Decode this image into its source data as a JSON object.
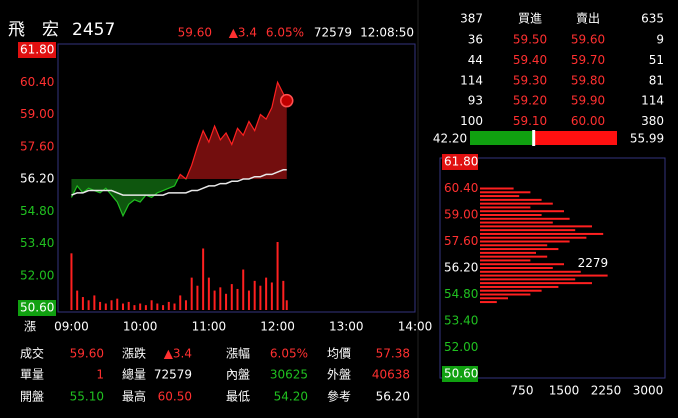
{
  "header": {
    "name": "飛　宏",
    "code": "2457",
    "price": "59.60",
    "change": "▲3.4",
    "change_pct": "6.05%",
    "volume": "72579",
    "time": "12:08:50"
  },
  "axis_note": "漲",
  "order_book": {
    "bid_total": "387",
    "bid_title": "買進",
    "ask_title": "賣出",
    "ask_total": "635",
    "rows": [
      [
        "36",
        "59.50",
        "59.60",
        "9"
      ],
      [
        "44",
        "59.40",
        "59.70",
        "51"
      ],
      [
        "114",
        "59.30",
        "59.80",
        "81"
      ],
      [
        "93",
        "59.20",
        "59.90",
        "114"
      ],
      [
        "100",
        "59.10",
        "60.00",
        "380"
      ]
    ],
    "ratio": {
      "bid": {
        "value": 42.2,
        "label": "42.20"
      },
      "ask": 55.99,
      "bid_color": "#10a010",
      "ask_color": "#ff1010"
    }
  },
  "stats": {
    "rows": [
      [
        {
          "label": "成交",
          "value": "59.60",
          "tone": "up"
        },
        {
          "label": "漲跌",
          "value": "▲3.4",
          "tone": "up"
        },
        {
          "label": "漲幅",
          "value": "6.05%",
          "tone": "up"
        },
        {
          "label": "均價",
          "value": "57.38",
          "tone": "up"
        }
      ],
      [
        {
          "label": "單量",
          "value": "1",
          "tone": "up"
        },
        {
          "label": "總量",
          "value": "72579",
          "tone": "flat"
        },
        {
          "label": "內盤",
          "value": "30625",
          "tone": "down"
        },
        {
          "label": "外盤",
          "value": "40638",
          "tone": "up"
        }
      ],
      [
        {
          "label": "開盤",
          "value": "55.10",
          "tone": "down"
        },
        {
          "label": "最高",
          "value": "60.50",
          "tone": "up"
        },
        {
          "label": "最低",
          "value": "54.20",
          "tone": "down"
        },
        {
          "label": "參考",
          "value": "56.20",
          "tone": "flat"
        }
      ]
    ]
  },
  "chart_data": [
    {
      "type": "line",
      "x": [
        "09:00",
        "09:05",
        "09:10",
        "09:15",
        "09:20",
        "09:25",
        "09:30",
        "09:35",
        "09:40",
        "09:45",
        "09:50",
        "09:55",
        "10:00",
        "10:05",
        "10:10",
        "10:15",
        "10:20",
        "10:25",
        "10:30",
        "10:35",
        "10:40",
        "10:45",
        "10:50",
        "10:55",
        "11:00",
        "11:05",
        "11:10",
        "11:15",
        "11:20",
        "11:25",
        "11:30",
        "11:35",
        "11:40",
        "11:45",
        "11:50",
        "11:55",
        "12:00",
        "12:05",
        "12:08"
      ],
      "series": [
        {
          "values": [
            55.4,
            55.9,
            55.6,
            55.8,
            55.7,
            55.6,
            55.8,
            55.5,
            55.2,
            54.6,
            55.1,
            55.3,
            55.2,
            55.5,
            55.4,
            55.6,
            55.7,
            55.8,
            55.9,
            56.4,
            56.2,
            56.8,
            57.6,
            58.3,
            57.8,
            58.5,
            57.9,
            58.2,
            57.7,
            58.4,
            58.1,
            58.7,
            58.3,
            59.0,
            58.8,
            59.3,
            60.4,
            59.9,
            59.6
          ]
        },
        {
          "values": [
            55.5,
            55.6,
            55.6,
            55.7,
            55.7,
            55.7,
            55.7,
            55.7,
            55.6,
            55.5,
            55.5,
            55.5,
            55.5,
            55.5,
            55.5,
            55.5,
            55.5,
            55.6,
            55.6,
            55.6,
            55.6,
            55.7,
            55.7,
            55.8,
            55.9,
            55.9,
            56.0,
            56.0,
            56.1,
            56.1,
            56.2,
            56.2,
            56.3,
            56.3,
            56.4,
            56.4,
            56.5,
            56.6,
            56.6
          ],
          "color": "#e8e8e8"
        }
      ],
      "up_color": "#ff2020",
      "down_color": "#20c020",
      "reference": 56.2,
      "volume": {
        "values": [
          350,
          120,
          80,
          60,
          90,
          50,
          40,
          60,
          70,
          40,
          50,
          30,
          40,
          30,
          60,
          40,
          30,
          50,
          40,
          90,
          60,
          200,
          150,
          380,
          200,
          120,
          140,
          100,
          160,
          130,
          250,
          120,
          180,
          150,
          200,
          170,
          420,
          180,
          60
        ],
        "color": "#ff2020"
      },
      "ylim": [
        50.6,
        61.8
      ],
      "yticks": [
        {
          "value": 50.6,
          "label": "50.60"
        },
        {
          "value": 52,
          "label": "52.00"
        },
        {
          "value": 53.4,
          "label": "53.40"
        },
        {
          "value": 54.8,
          "label": "54.80"
        },
        {
          "value": 56.2,
          "label": "56.20"
        },
        {
          "value": 57.6,
          "label": "57.60"
        },
        {
          "value": 59,
          "label": "59.00"
        },
        {
          "value": 60.4,
          "label": "60.40"
        },
        {
          "value": 61.8,
          "label": "61.80"
        }
      ],
      "xlim": [
        "08:50",
        "14:00"
      ],
      "xticks": [
        "09:00",
        "10:00",
        "11:00",
        "12:00",
        "13:00",
        "14:00"
      ]
    },
    {
      "type": "bar",
      "orientation": "horizontal",
      "y": [
        60.4,
        60.2,
        60.0,
        59.8,
        59.6,
        59.4,
        59.2,
        59.0,
        58.8,
        58.6,
        58.4,
        58.2,
        58.0,
        57.8,
        57.6,
        57.4,
        57.2,
        57.0,
        56.8,
        56.6,
        56.4,
        56.2,
        56.0,
        55.8,
        55.6,
        55.4,
        55.2,
        55.0,
        54.8,
        54.6,
        54.4
      ],
      "values": [
        600,
        900,
        700,
        1100,
        1300,
        900,
        1500,
        1100,
        1600,
        1300,
        2000,
        1700,
        2200,
        1900,
        1600,
        1200,
        1400,
        1000,
        1200,
        900,
        1500,
        1300,
        1800,
        2279,
        1700,
        2000,
        1400,
        1100,
        900,
        500,
        300
      ],
      "color": "#ff2020",
      "label_max": true,
      "label_color": "#ffe020",
      "reference": 56.2,
      "ylim": [
        50.6,
        61.8
      ],
      "yticks": [
        {
          "value": 50.6,
          "label": "50.60"
        },
        {
          "value": 52,
          "label": "52.00"
        },
        {
          "value": 53.4,
          "label": "53.40"
        },
        {
          "value": 54.8,
          "label": "54.80"
        },
        {
          "value": 56.2,
          "label": "56.20"
        },
        {
          "value": 57.6,
          "label": "57.60"
        },
        {
          "value": 59,
          "label": "59.00"
        },
        {
          "value": 60.4,
          "label": "60.40"
        },
        {
          "value": 61.8,
          "label": "61.80"
        }
      ],
      "xlim": [
        0,
        3000
      ],
      "xticks": [
        750,
        1500,
        2250,
        3000
      ]
    }
  ]
}
